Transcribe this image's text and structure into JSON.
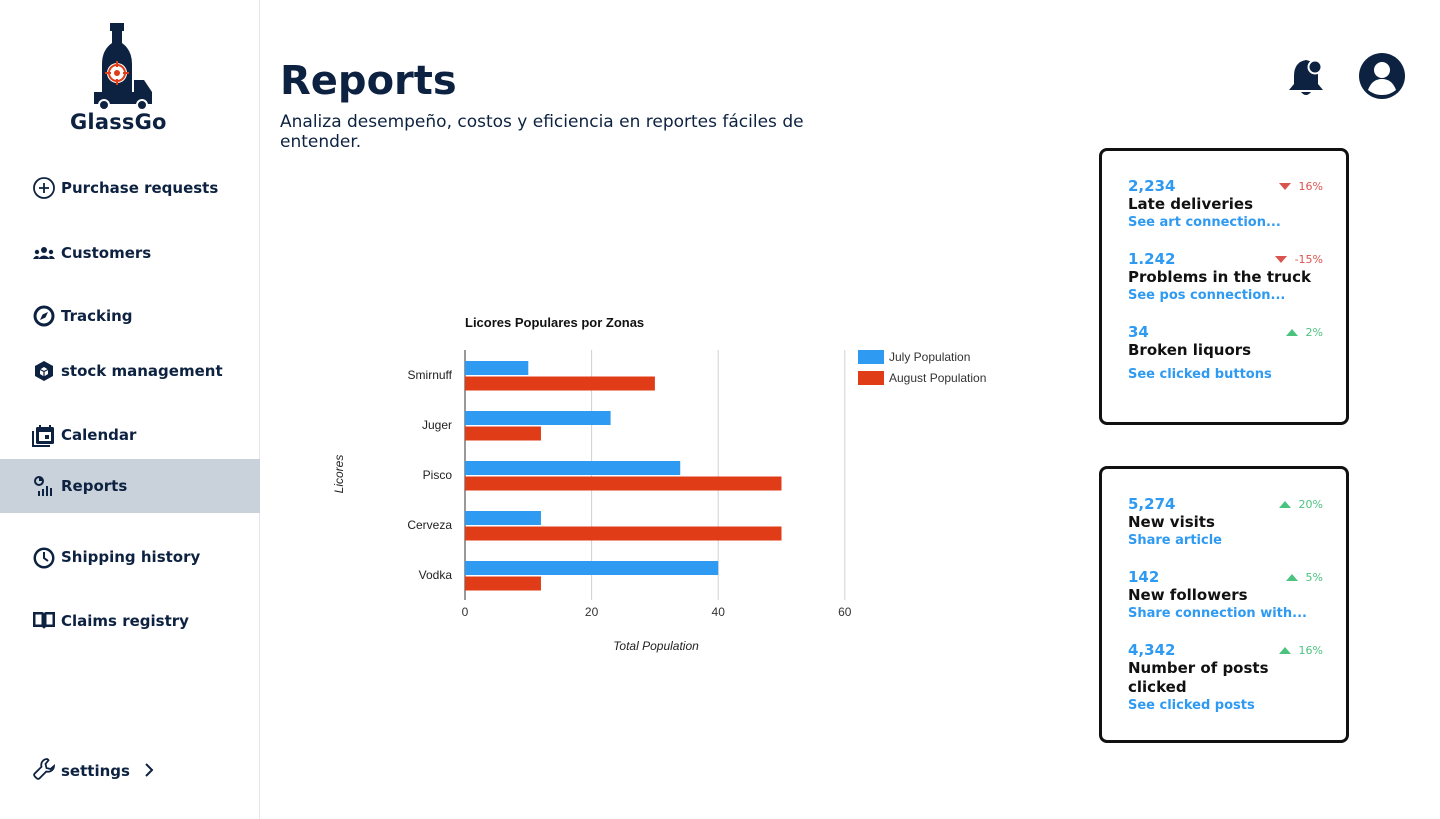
{
  "app": {
    "name": "GlassGo"
  },
  "sidebar": {
    "items": [
      {
        "label": "Purchase requests",
        "icon": "plus-circle-icon"
      },
      {
        "label": "Customers",
        "icon": "group-icon"
      },
      {
        "label": "Tracking",
        "icon": "compass-icon"
      },
      {
        "label": "stock management",
        "icon": "box-icon"
      },
      {
        "label": "Calendar",
        "icon": "calendar-icon"
      },
      {
        "label": "Reports",
        "icon": "report-chart-icon",
        "active": true
      },
      {
        "label": "Shipping history",
        "icon": "clock-icon"
      },
      {
        "label": "Claims registry",
        "icon": "book-icon"
      }
    ],
    "settings_label": "settings"
  },
  "header": {
    "title": "Reports",
    "subtitle": "Analiza desempeño, costos y eficiencia en reportes fáciles de entender."
  },
  "stats_top": [
    {
      "value": "2,234",
      "label": "Late deliveries",
      "link": "See art connection...",
      "change": "16%",
      "direction": "down"
    },
    {
      "value": "1.242",
      "label": "Problems in the truck",
      "link": "See pos connection...",
      "change": "-15%",
      "direction": "down"
    },
    {
      "value": "34",
      "label": "Broken liquors",
      "link": "See clicked buttons",
      "change": "2%",
      "direction": "up"
    }
  ],
  "stats_bottom": [
    {
      "value": "5,274",
      "label": "New visits",
      "link": "Share article",
      "change": "20%",
      "direction": "up"
    },
    {
      "value": "142",
      "label": "New followers",
      "link": "Share connection with...",
      "change": "5%",
      "direction": "up"
    },
    {
      "value": "4,342",
      "label": "Number of posts clicked",
      "link": "See clicked posts",
      "change": "16%",
      "direction": "up"
    }
  ],
  "colors": {
    "brand": "#0d2240",
    "accent": "#2f9af2",
    "up": "#4cc27f",
    "down": "#d9534f",
    "series_july": "#2f9af2",
    "series_august": "#e03c17",
    "active_nav": "#c9d2db"
  },
  "chart_data": {
    "type": "bar",
    "orientation": "horizontal",
    "title": "Licores Populares por Zonas",
    "xlabel": "Total Population",
    "ylabel": "Licores",
    "categories": [
      "Smirnuff",
      "Juger",
      "Pisco",
      "Cerveza",
      "Vodka"
    ],
    "series": [
      {
        "name": "July Population",
        "values": [
          10,
          23,
          34,
          12,
          40
        ]
      },
      {
        "name": "August Population",
        "values": [
          30,
          12,
          50,
          50,
          12
        ]
      }
    ],
    "xlim": [
      0,
      60
    ],
    "xticks": [
      0,
      20,
      40,
      60
    ],
    "grid": true,
    "legend": "top-right"
  }
}
